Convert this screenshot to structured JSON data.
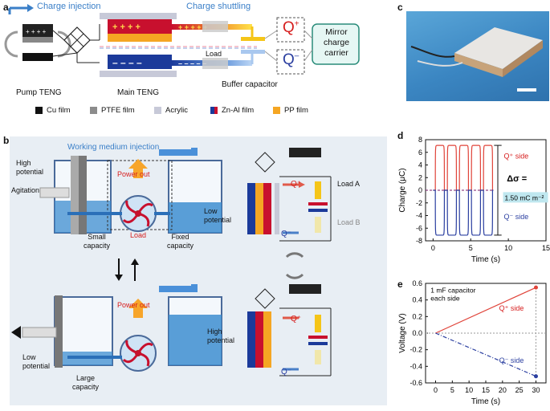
{
  "panels": {
    "a": "a",
    "b": "b",
    "c": "c",
    "d": "d",
    "e": "e"
  },
  "a": {
    "charge_injection": "Charge injection",
    "charge_shuttling": "Charge shuttling",
    "pump_teng": "Pump TENG",
    "main_teng": "Main TENG",
    "load": "Load",
    "buffer_capacitor": "Buffer capacitor",
    "q_plus": "Q",
    "q_minus": "Q",
    "mirror": [
      "Mirror",
      "charge",
      "carrier"
    ],
    "legend": [
      {
        "label": "Cu film",
        "color": "#111111"
      },
      {
        "label": "PTFE film",
        "color": "#8c8c8c"
      },
      {
        "label": "Acrylic",
        "color": "#c7c9d8"
      },
      {
        "label": "Zn-Al film",
        "color": "#c8102e"
      },
      {
        "label": "PP film",
        "color": "#f5a623"
      }
    ]
  },
  "b": {
    "working_medium": "Working medium  injection",
    "high_potential": [
      "High",
      "potential"
    ],
    "agitation": "Agitation",
    "power_out": "Power out",
    "low_potential": [
      "Low",
      "potential"
    ],
    "small_capacity": [
      "Small",
      "capacity"
    ],
    "load": "Load",
    "fixed_capacity": [
      "Fixed",
      "capacity"
    ],
    "power_out2": "Power out",
    "high_potential2": [
      "High",
      "potential"
    ],
    "low_potential2": [
      "Low",
      "potential"
    ],
    "large_capacity": [
      "Large",
      "capacity"
    ],
    "q_plus": "Q⁺",
    "q_minus": "Q⁻",
    "load_a": "Load A",
    "load_b": "Load B",
    "q_plus2": "Q⁺",
    "q_minus2": "Q⁻"
  },
  "d": {
    "ylabel": "Charge (μC)",
    "xlabel": "Time (s)",
    "yticks": [
      "8",
      "6",
      "4",
      "2",
      "0",
      "-2",
      "-4",
      "-6",
      "-8"
    ],
    "xticks": [
      "0",
      "5",
      "10",
      "15"
    ],
    "q_plus_side": "Q⁺ side",
    "q_minus_side": "Q⁻ side",
    "delta_sigma": "Δσ =",
    "delta_value": "1.50 mC m⁻²"
  },
  "e": {
    "ylabel": "Voltage (V)",
    "xlabel": "Time (s)",
    "yticks": [
      "0.6",
      "0.4",
      "0.2",
      "0.0",
      "-0.2",
      "-0.4",
      "-0.6"
    ],
    "xticks": [
      "0",
      "5",
      "10",
      "15",
      "20",
      "25",
      "30"
    ],
    "note": [
      "1 mF capacitor",
      "each side"
    ],
    "q_plus_side": "Q⁺ side",
    "q_minus_side": "Q⁻ side"
  },
  "chart_data": [
    {
      "type": "line",
      "xlabel": "Time (s)",
      "ylabel": "Charge (μC)",
      "xlim": [
        -1,
        15
      ],
      "ylim": [
        -8,
        8
      ],
      "series": [
        {
          "name": "Q⁺ side",
          "color": "#e0443a",
          "pulses_start": [
            0.3,
            1.9,
            3.5,
            5.1,
            6.7
          ],
          "pulse_width": 1.2,
          "high": 7.1,
          "low": 0
        },
        {
          "name": "Q⁻ side",
          "color": "#2b3fa0",
          "pulses_start": [
            0.3,
            1.9,
            3.5,
            5.1,
            6.7
          ],
          "pulse_width": 1.2,
          "high": 0,
          "low": -7.1
        }
      ]
    },
    {
      "type": "line",
      "xlabel": "Time (s)",
      "ylabel": "Voltage (V)",
      "xlim": [
        -3,
        33
      ],
      "ylim": [
        -0.6,
        0.6
      ],
      "series": [
        {
          "name": "Q⁺ side",
          "color": "#e0443a",
          "x": [
            0,
            30
          ],
          "y": [
            0,
            0.55
          ]
        },
        {
          "name": "Q⁻ side",
          "color": "#2b3fa0",
          "x": [
            0,
            30
          ],
          "y": [
            0,
            -0.52
          ]
        }
      ]
    }
  ]
}
